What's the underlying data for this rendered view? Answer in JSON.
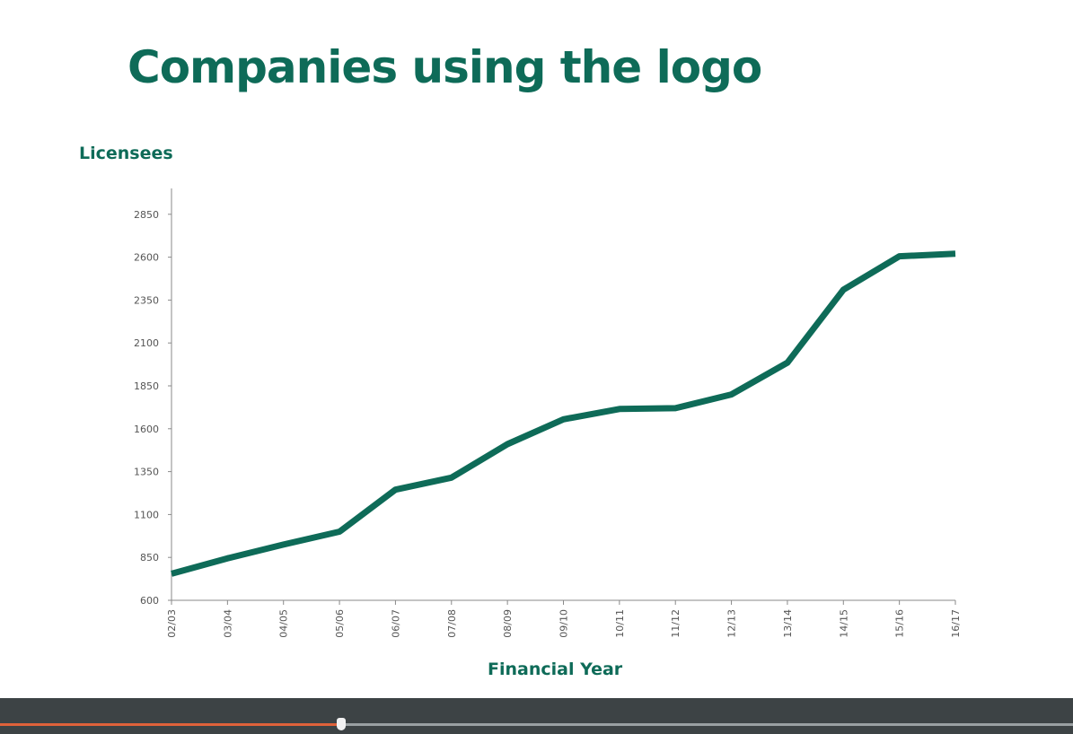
{
  "slide": {
    "title": "Companies using the logo"
  },
  "chart_data": {
    "type": "line",
    "ylabel": "Licensees",
    "xlabel": "Financial Year",
    "categories": [
      "02/03",
      "03/04",
      "04/05",
      "05/06",
      "06/07",
      "07/08",
      "08/09",
      "09/10",
      "10/11",
      "11/12",
      "12/13",
      "13/14",
      "14/15",
      "15/16",
      "16/17"
    ],
    "series": [
      {
        "values": [
          755,
          845,
          925,
          1000,
          1245,
          1315,
          1510,
          1655,
          1715,
          1720,
          1800,
          1985,
          2410,
          2605,
          2620
        ]
      }
    ],
    "yticks": [
      600,
      850,
      1100,
      1350,
      1600,
      1850,
      2100,
      2350,
      2600,
      2850
    ],
    "ylim": [
      600,
      2850
    ],
    "grid": false,
    "line_color": "#0e6b58"
  },
  "player": {
    "progress": 0.318
  }
}
